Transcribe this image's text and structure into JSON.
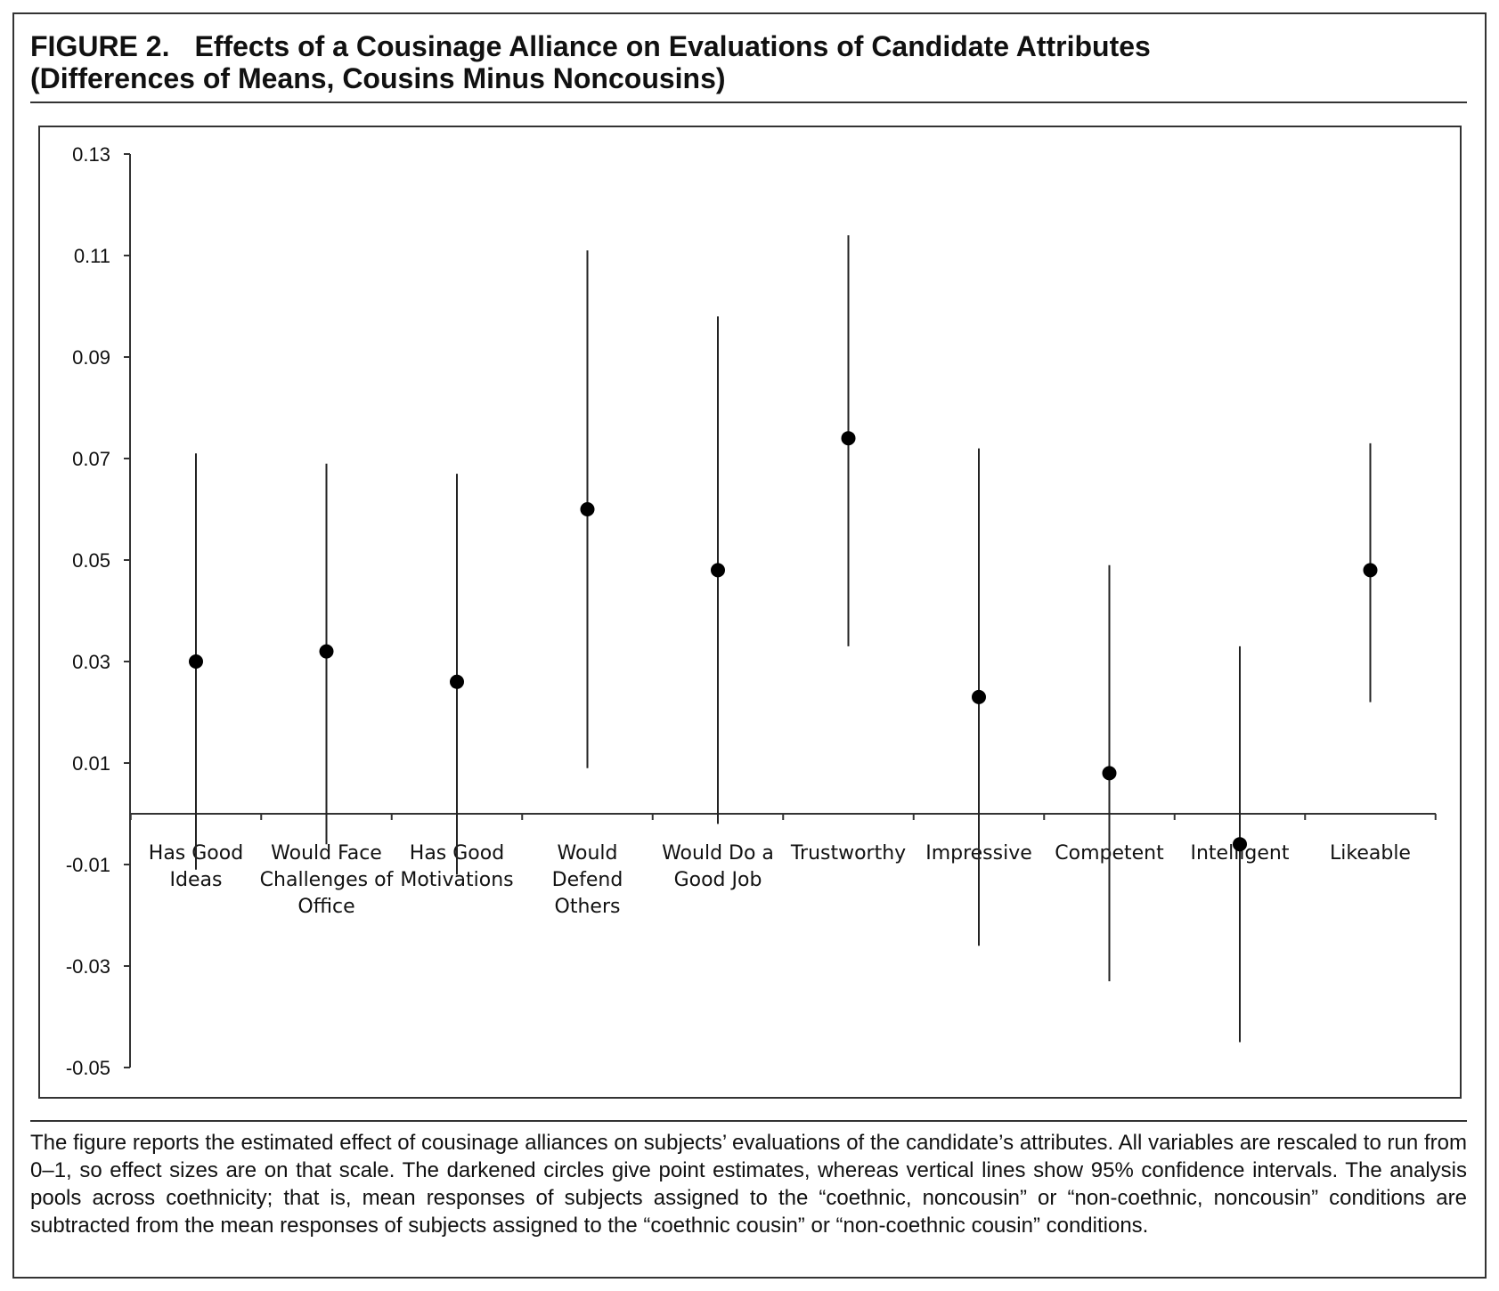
{
  "figure": {
    "label": "FIGURE 2.",
    "title_line1": "Effects of a Cousinage Alliance on Evaluations of Candidate Attributes",
    "title_line2": "(Differences of Means, Cousins Minus Noncousins)"
  },
  "caption": "The figure reports the estimated effect of cousinage alliances on subjects’ evaluations of the candidate’s attributes. All variables are rescaled to run from 0–1, so effect sizes are on that scale. The darkened circles give point estimates, whereas vertical lines show 95% confidence intervals. The analysis pools across coethnicity; that is, mean responses of subjects assigned to the “coethnic, noncousin” or “non-coethnic, noncousin” conditions are subtracted from the mean responses of subjects assigned to the “coethnic cousin” or “non-coethnic cousin” conditions.",
  "chart_data": {
    "type": "scatter",
    "title": "",
    "xlabel": "",
    "ylabel": "",
    "ylim": [
      -0.05,
      0.13
    ],
    "y_ticks": [
      0.13,
      0.11,
      0.09,
      0.07,
      0.05,
      0.03,
      0.01,
      -0.01,
      -0.03,
      -0.05
    ],
    "y_tick_labels": [
      "0.13",
      "0.11",
      "0.09",
      "0.07",
      "0.05",
      "0.03",
      "0.01",
      "-0.01",
      "-0.03",
      "-0.05"
    ],
    "grid": false,
    "legend": "none",
    "marker_color": "#000000",
    "line_color": "#222222",
    "categories": [
      [
        "Has Good",
        "Ideas"
      ],
      [
        "Would Face",
        "Challenges of",
        "Office"
      ],
      [
        "Has Good",
        "Motivations"
      ],
      [
        "Would",
        "Defend",
        "Others"
      ],
      [
        "Would Do a",
        "Good Job"
      ],
      [
        "Trustworthy"
      ],
      [
        "Impressive"
      ],
      [
        "Competent"
      ],
      [
        "Intelligent"
      ],
      [
        "Likeable"
      ]
    ],
    "estimates": [
      0.03,
      0.032,
      0.026,
      0.06,
      0.048,
      0.074,
      0.023,
      0.008,
      -0.006,
      0.048
    ],
    "ci_lower": [
      -0.011,
      -0.006,
      -0.012,
      0.009,
      -0.002,
      0.033,
      -0.026,
      -0.033,
      -0.045,
      0.022
    ],
    "ci_upper": [
      0.071,
      0.069,
      0.067,
      0.111,
      0.098,
      0.114,
      0.072,
      0.049,
      0.033,
      0.073
    ]
  }
}
